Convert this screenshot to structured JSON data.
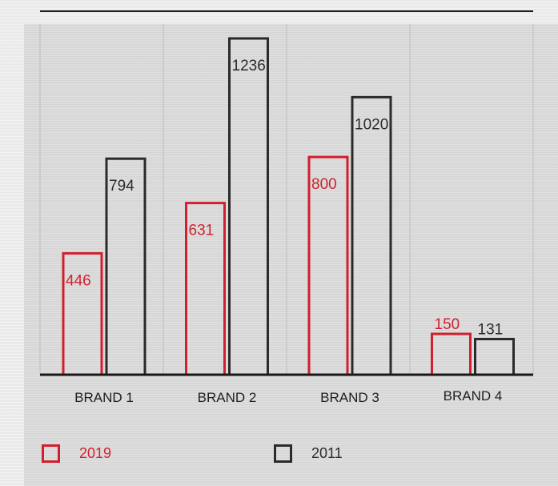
{
  "chart_data": {
    "type": "bar",
    "categories": [
      "BRAND 1",
      "BRAND 2",
      "BRAND 3",
      "BRAND 4"
    ],
    "series": [
      {
        "name": "2019",
        "values": [
          446,
          631,
          800,
          150
        ],
        "color": "#d0202e"
      },
      {
        "name": "2011",
        "values": [
          794,
          1236,
          1020,
          131
        ],
        "color": "#2b2b2b"
      }
    ],
    "title": "",
    "xlabel": "",
    "ylabel": "",
    "ylim": [
      0,
      1300
    ],
    "grid": "vertical",
    "legend_position": "bottom-left"
  }
}
